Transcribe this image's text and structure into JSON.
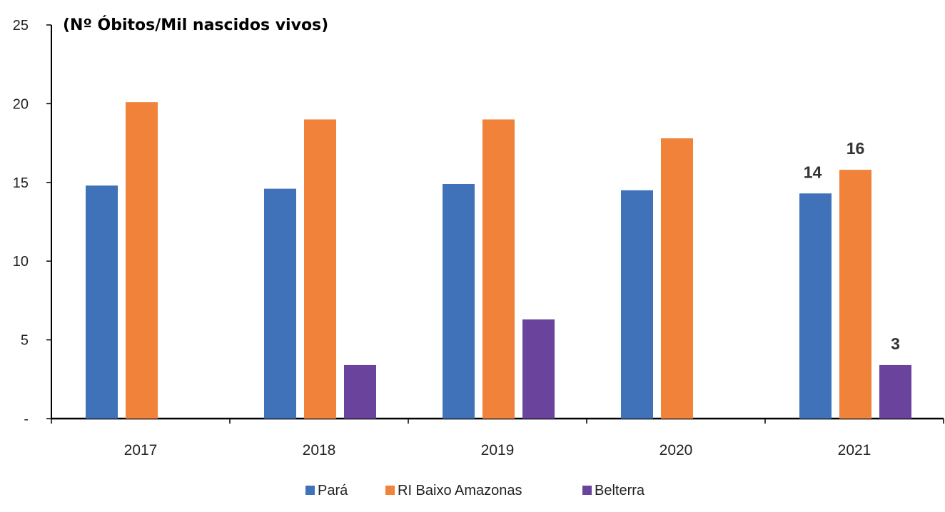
{
  "chart_data": {
    "type": "bar",
    "title": "(Nº Óbitos/Mil nascidos vivos)",
    "categories": [
      "2017",
      "2018",
      "2019",
      "2020",
      "2021"
    ],
    "series": [
      {
        "name": "Pará",
        "color": "#3f72b8",
        "values": [
          14.8,
          14.6,
          14.9,
          14.5,
          14.3
        ]
      },
      {
        "name": "RI Baixo Amazonas",
        "color": "#f0823a",
        "values": [
          20.1,
          19.0,
          19.0,
          17.8,
          15.8
        ]
      },
      {
        "name": "Belterra",
        "color": "#6a449c",
        "values": [
          null,
          3.4,
          6.3,
          null,
          3.4
        ]
      }
    ],
    "y_ticks": [
      "-",
      "5",
      "10",
      "15",
      "20",
      "25"
    ],
    "ylim": [
      0,
      25
    ],
    "data_labels": [
      {
        "series": 0,
        "category": 4,
        "text": "14"
      },
      {
        "series": 1,
        "category": 4,
        "text": "16"
      },
      {
        "series": 2,
        "category": 4,
        "text": "3"
      }
    ],
    "legend_position": "bottom-center",
    "grid": false
  }
}
